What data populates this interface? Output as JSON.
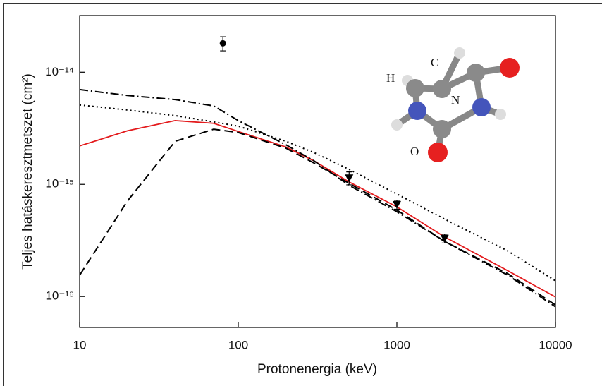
{
  "chart_data": {
    "type": "line",
    "x_label": "Protonenergia (keV)",
    "y_label": "Teljes hatáskeresztmetszet (cm²)",
    "log_x": true,
    "log_y": true,
    "xlim": [
      10,
      10000
    ],
    "xticks": [
      10,
      100,
      1000,
      10000
    ],
    "ylim": [
      5.3e-17,
      3.2e-14
    ],
    "yticks": [
      {
        "value": 1e-14,
        "label": "10⁻¹⁴"
      },
      {
        "value": 1e-15,
        "label": "10⁻¹⁵"
      },
      {
        "value": 1e-16,
        "label": "10⁻¹⁶"
      }
    ],
    "x": [
      10,
      20,
      40,
      70,
      100,
      200,
      300,
      500,
      1000,
      2000,
      5000,
      10000
    ],
    "series": [
      {
        "color": "#e31a1c",
        "style": "solid",
        "values": [
          2.2e-15,
          3e-15,
          3.7e-15,
          3.5e-15,
          2.96e-15,
          2.15e-15,
          1.62e-15,
          1.05e-15,
          6.3e-16,
          3.4e-16,
          1.7e-16,
          9.9e-17
        ]
      },
      {
        "color": "#000000",
        "style": "dashed",
        "values": [
          1.55e-16,
          7.1e-16,
          2.42e-15,
          3.1e-15,
          2.9e-15,
          2.1e-15,
          1.55e-15,
          1.02e-15,
          5.9e-16,
          3.1e-16,
          1.6e-16,
          8.4e-17
        ]
      },
      {
        "color": "#000000",
        "style": "dotted",
        "values": [
          5.1e-15,
          4.6e-15,
          4.1e-15,
          3.6e-15,
          3.3e-15,
          2.42e-15,
          1.92e-15,
          1.36e-15,
          8.2e-16,
          4.9e-16,
          2.55e-16,
          1.38e-16
        ]
      },
      {
        "color": "#000000",
        "style": "dashdot",
        "values": [
          7e-15,
          6.2e-15,
          5.7e-15,
          5e-15,
          3.7e-15,
          2.25e-15,
          1.62e-15,
          9.8e-16,
          5.7e-16,
          3.1e-16,
          1.55e-16,
          8.1e-17
        ]
      }
    ],
    "points": [
      {
        "marker": "circle",
        "x": [
          80
        ],
        "values": [
          1.81e-14
        ],
        "errors": [
          2.6e-15
        ]
      },
      {
        "marker": "triangle",
        "x": [
          500,
          1000,
          2000
        ],
        "values": [
          1.14e-15,
          6.6e-16,
          3.3e-16
        ],
        "errors": [
          1.5e-16,
          6e-17,
          3e-17
        ]
      }
    ],
    "annotations": [
      "H",
      "C",
      "N",
      "O"
    ]
  }
}
